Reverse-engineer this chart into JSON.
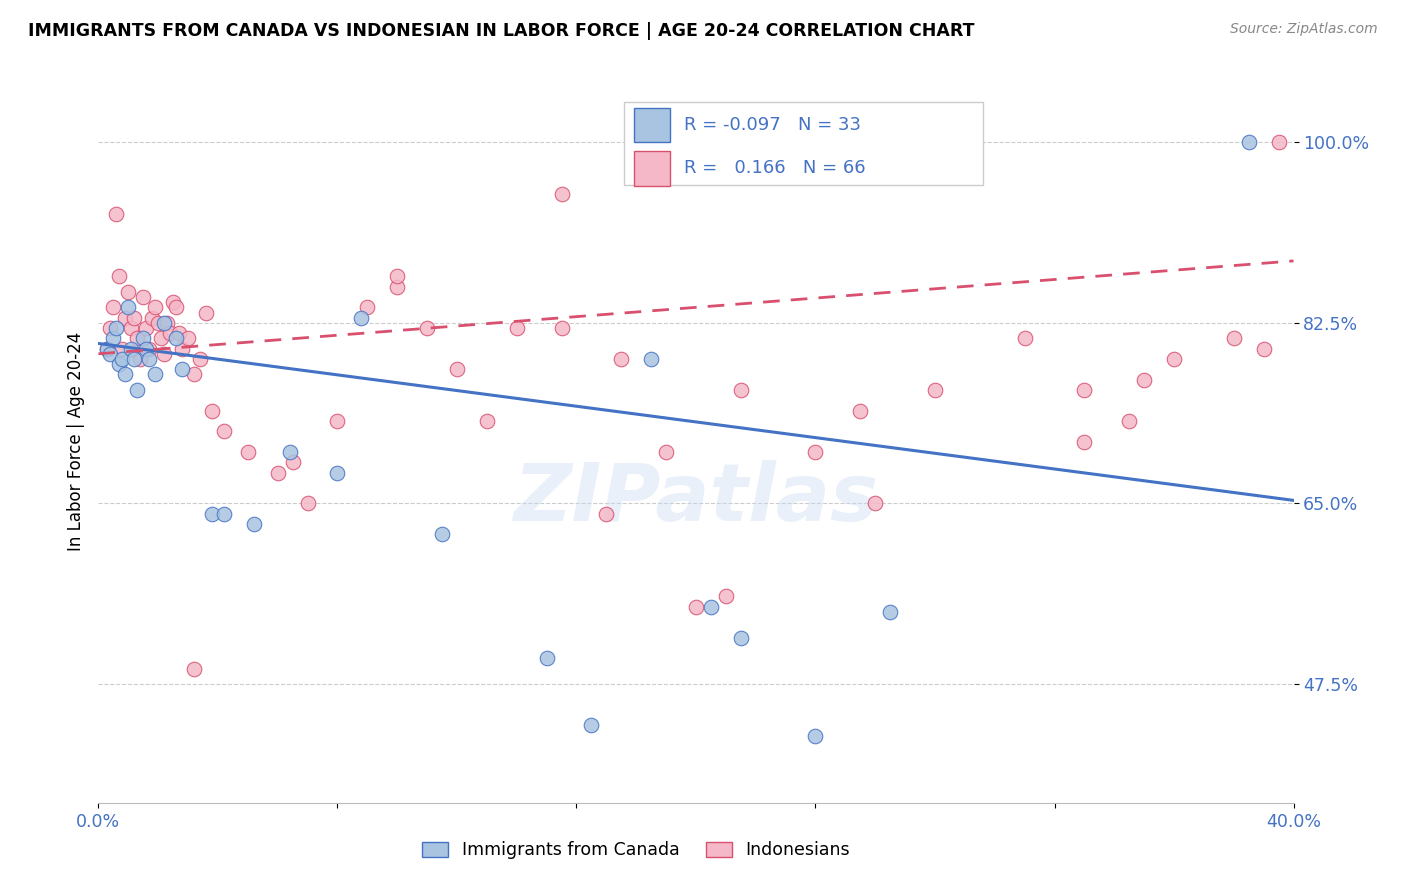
{
  "title": "IMMIGRANTS FROM CANADA VS INDONESIAN IN LABOR FORCE | AGE 20-24 CORRELATION CHART",
  "source": "Source: ZipAtlas.com",
  "ylabel": "In Labor Force | Age 20-24",
  "xlim": [
    0.0,
    0.4
  ],
  "ylim": [
    0.36,
    1.06
  ],
  "yticks": [
    0.475,
    0.65,
    0.825,
    1.0
  ],
  "ytick_labels": [
    "47.5%",
    "65.0%",
    "82.5%",
    "100.0%"
  ],
  "canada_r": -0.097,
  "canada_n": 33,
  "indonesian_r": 0.166,
  "indonesian_n": 66,
  "canada_color": "#a8c4e0",
  "indonesian_color": "#f4b8c8",
  "canada_line_color": "#4472c4",
  "indonesian_line_color": "#d94f6e",
  "watermark_text": "ZIPatlas",
  "canada_x": [
    0.003,
    0.004,
    0.005,
    0.006,
    0.007,
    0.008,
    0.009,
    0.01,
    0.011,
    0.012,
    0.013,
    0.015,
    0.016,
    0.017,
    0.019,
    0.022,
    0.026,
    0.028,
    0.038,
    0.042,
    0.052,
    0.064,
    0.08,
    0.088,
    0.115,
    0.15,
    0.165,
    0.185,
    0.205,
    0.215,
    0.24,
    0.265,
    0.385
  ],
  "canada_y": [
    0.8,
    0.795,
    0.81,
    0.82,
    0.785,
    0.79,
    0.775,
    0.84,
    0.8,
    0.79,
    0.76,
    0.81,
    0.8,
    0.79,
    0.775,
    0.825,
    0.81,
    0.78,
    0.64,
    0.64,
    0.63,
    0.7,
    0.68,
    0.83,
    0.62,
    0.5,
    0.435,
    0.79,
    0.55,
    0.52,
    0.425,
    0.545,
    1.0
  ],
  "indonesian_x": [
    0.003,
    0.004,
    0.005,
    0.006,
    0.007,
    0.008,
    0.009,
    0.01,
    0.011,
    0.012,
    0.013,
    0.014,
    0.015,
    0.016,
    0.017,
    0.018,
    0.019,
    0.02,
    0.021,
    0.022,
    0.023,
    0.024,
    0.025,
    0.026,
    0.027,
    0.028,
    0.03,
    0.032,
    0.034,
    0.036,
    0.038,
    0.042,
    0.05,
    0.06,
    0.07,
    0.08,
    0.09,
    0.1,
    0.11,
    0.12,
    0.13,
    0.14,
    0.155,
    0.17,
    0.175,
    0.19,
    0.2,
    0.21,
    0.215,
    0.24,
    0.255,
    0.26,
    0.28,
    0.31,
    0.33,
    0.345,
    0.35,
    0.36,
    0.38,
    0.39,
    0.395,
    0.33,
    0.155,
    0.1,
    0.065,
    0.032
  ],
  "indonesian_y": [
    0.8,
    0.82,
    0.84,
    0.93,
    0.87,
    0.8,
    0.83,
    0.855,
    0.82,
    0.83,
    0.81,
    0.79,
    0.85,
    0.82,
    0.8,
    0.83,
    0.84,
    0.825,
    0.81,
    0.795,
    0.825,
    0.815,
    0.845,
    0.84,
    0.815,
    0.8,
    0.81,
    0.775,
    0.79,
    0.835,
    0.74,
    0.72,
    0.7,
    0.68,
    0.65,
    0.73,
    0.84,
    0.86,
    0.82,
    0.78,
    0.73,
    0.82,
    0.82,
    0.64,
    0.79,
    0.7,
    0.55,
    0.56,
    0.76,
    0.7,
    0.74,
    0.65,
    0.76,
    0.81,
    0.71,
    0.73,
    0.77,
    0.79,
    0.81,
    0.8,
    1.0,
    0.76,
    0.95,
    0.87,
    0.69,
    0.49
  ]
}
